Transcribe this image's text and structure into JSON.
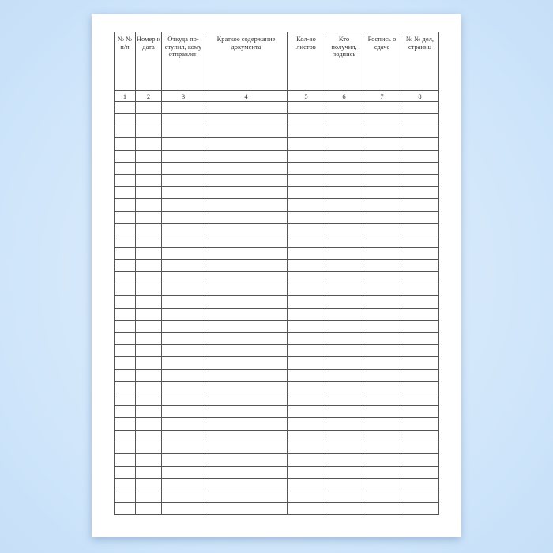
{
  "columns": [
    {
      "header": "№ № п/п",
      "number": "1"
    },
    {
      "header": "Номер и дата",
      "number": "2"
    },
    {
      "header": "Откуда по-ступил, кому отправлен",
      "number": "3"
    },
    {
      "header": "Краткое содержание документа",
      "number": "4"
    },
    {
      "header": "Кол-во листов",
      "number": "5"
    },
    {
      "header": "Кто получил, подпись",
      "number": "6"
    },
    {
      "header": "Роспись о сдаче",
      "number": "7"
    },
    {
      "header": "№ № дел, страниц",
      "number": "8"
    }
  ],
  "empty_rows": 34
}
